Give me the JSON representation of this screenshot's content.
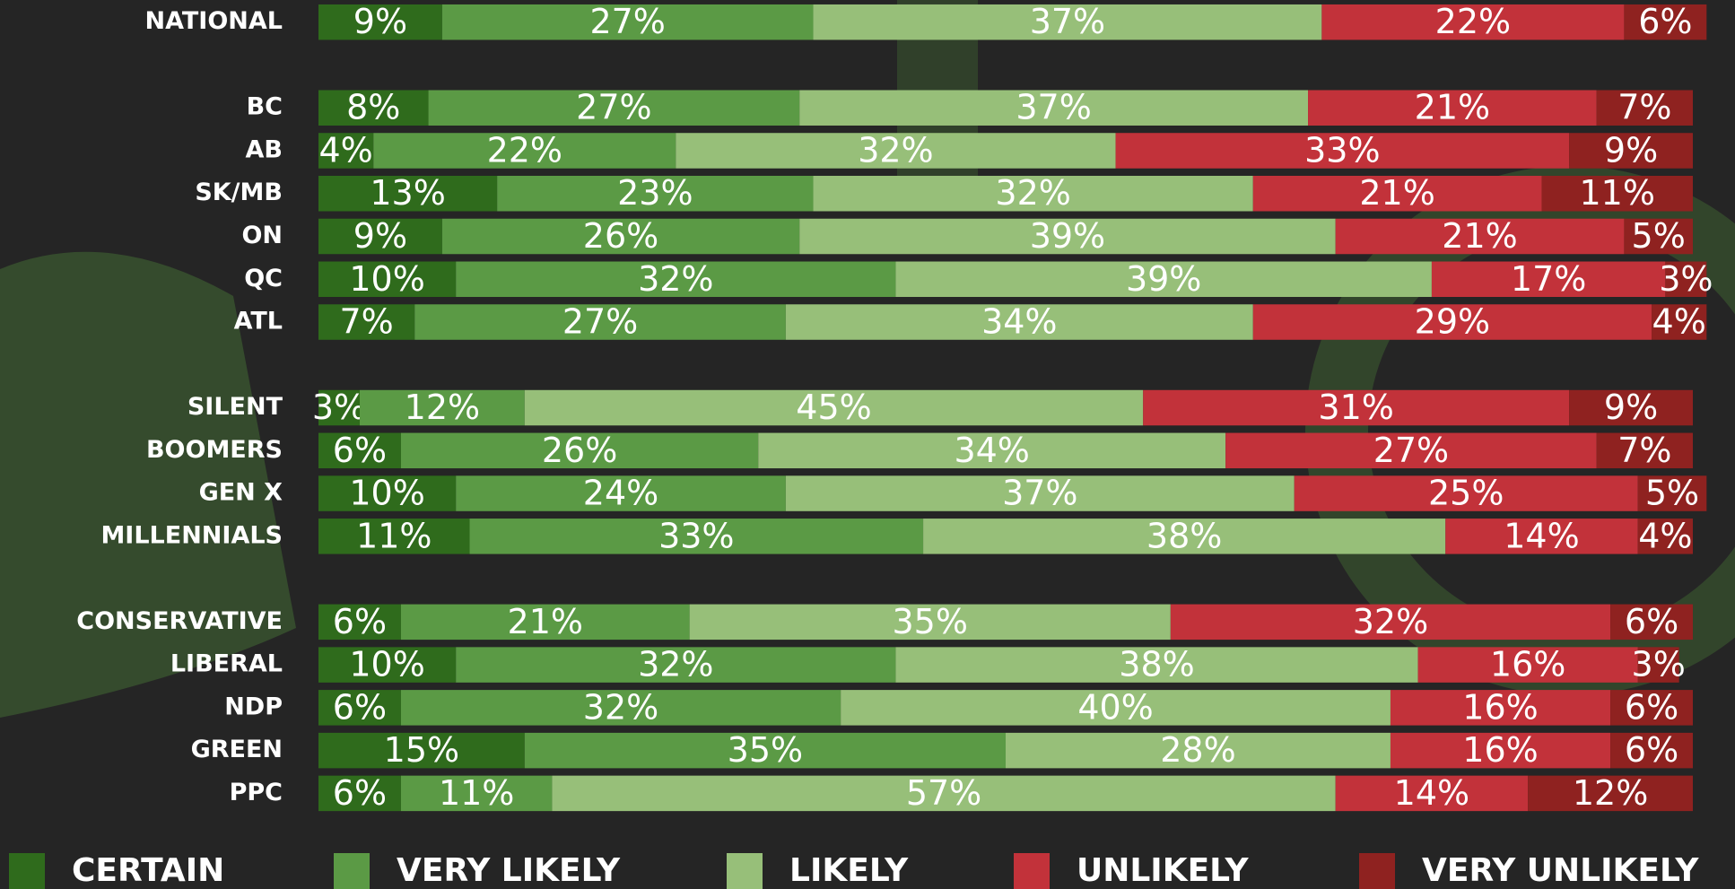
{
  "chart_data": {
    "type": "stacked-bar-horizontal",
    "categories": [
      "NATIONAL",
      null,
      "BC",
      "AB",
      "SK/MB",
      "ON",
      "QC",
      "ATL",
      null,
      "SILENT",
      "BOOMERS",
      "GEN X",
      "MILLENNIALS",
      null,
      "CONSERVATIVE",
      "LIBERAL",
      "NDP",
      "GREEN",
      "PPC"
    ],
    "xlim": [
      0,
      100
    ],
    "series": [
      {
        "name": "CERTAIN",
        "color": "#2f6b1c",
        "values": [
          9,
          null,
          8,
          4,
          13,
          9,
          10,
          7,
          null,
          3,
          6,
          10,
          11,
          null,
          6,
          10,
          6,
          15,
          6
        ],
        "value_labels": [
          "9%",
          null,
          "8%",
          "4%",
          "13%",
          "9%",
          "10%",
          "7%",
          null,
          "3%",
          "6%",
          "10%",
          "11%",
          null,
          "6%",
          "10%",
          "6%",
          "15%",
          "6%"
        ]
      },
      {
        "name": "VERY LIKELY",
        "color": "#5b9a45",
        "values": [
          27,
          null,
          27,
          22,
          23,
          26,
          32,
          27,
          null,
          12,
          26,
          24,
          33,
          null,
          21,
          32,
          32,
          35,
          11
        ],
        "value_labels": [
          "27%",
          null,
          "27%",
          "22%",
          "23%",
          "26%",
          "32%",
          "27%",
          null,
          "12%",
          "26%",
          "24%",
          "33%",
          null,
          "21%",
          "32%",
          "32%",
          "35%",
          "11%"
        ]
      },
      {
        "name": "LIKELY",
        "color": "#97bf79",
        "values": [
          37,
          null,
          37,
          32,
          32,
          39,
          39,
          34,
          null,
          45,
          34,
          37,
          38,
          null,
          35,
          38,
          40,
          28,
          57
        ],
        "value_labels": [
          "37%",
          null,
          "37%",
          "32%",
          "32%",
          "39%",
          "39%",
          "34%",
          null,
          "45%",
          "34%",
          "37%",
          "38%",
          null,
          "35%",
          "38%",
          "40%",
          "28%",
          "57%"
        ]
      },
      {
        "name": "UNLIKELY",
        "color": "#c2323a",
        "values": [
          22,
          null,
          21,
          33,
          21,
          21,
          17,
          29,
          null,
          31,
          27,
          25,
          14,
          null,
          32,
          16,
          16,
          16,
          14
        ],
        "value_labels": [
          "22%",
          null,
          "21%",
          "33%",
          "21%",
          "21%",
          "17%",
          "29%",
          null,
          "31%",
          "27%",
          "25%",
          "14%",
          null,
          "32%",
          "16%",
          "16%",
          "16%",
          "14%"
        ]
      },
      {
        "name": "VERY UNLIKELY",
        "color": "#8f2220",
        "values": [
          6,
          null,
          7,
          9,
          11,
          5,
          3,
          4,
          null,
          9,
          7,
          5,
          4,
          null,
          6,
          3,
          6,
          6,
          12
        ],
        "value_labels": [
          "6%",
          null,
          "7%",
          "9%",
          "11%",
          "5%",
          "3%",
          "4%",
          null,
          "9%",
          "7%",
          "5%",
          "4%",
          null,
          "6%",
          "3%",
          "6%",
          "6%",
          "12%"
        ]
      }
    ]
  }
}
